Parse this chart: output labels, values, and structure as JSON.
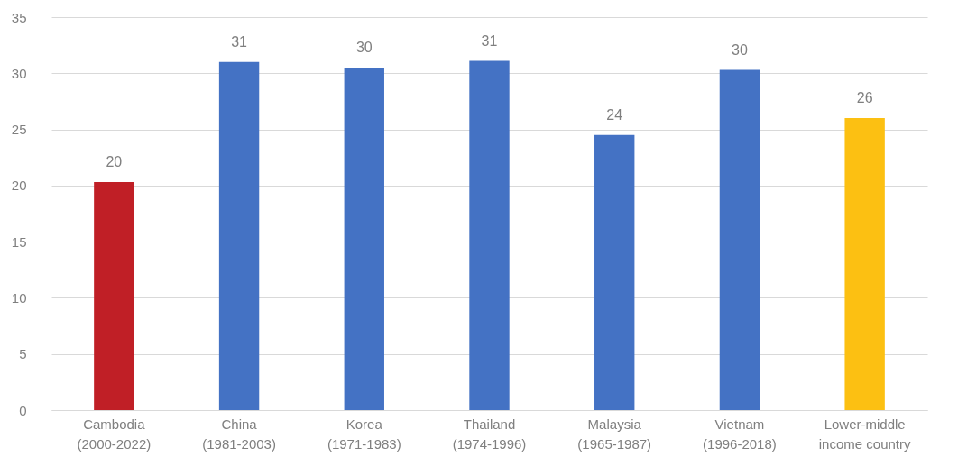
{
  "chart_data": {
    "type": "bar",
    "categories": [
      "Cambodia\n(2000-2022)",
      "China\n(1981-2003)",
      "Korea\n(1971-1983)",
      "Thailand\n(1974-1996)",
      "Malaysia\n(1965-1987)",
      "Vietnam\n(1996-2018)",
      "Lower-middle\nincome country"
    ],
    "values": [
      20.3,
      31.0,
      30.5,
      31.1,
      24.5,
      30.3,
      26.0
    ],
    "value_labels": [
      "20",
      "31",
      "30",
      "31",
      "24",
      "30",
      "26"
    ],
    "colors": [
      "#c01f26",
      "#4472c4",
      "#4472c4",
      "#4472c4",
      "#4472c4",
      "#4472c4",
      "#fcc012"
    ],
    "ylim": [
      0,
      35
    ],
    "yticks": [
      0,
      5,
      10,
      15,
      20,
      25,
      30,
      35
    ],
    "grid": "y"
  }
}
